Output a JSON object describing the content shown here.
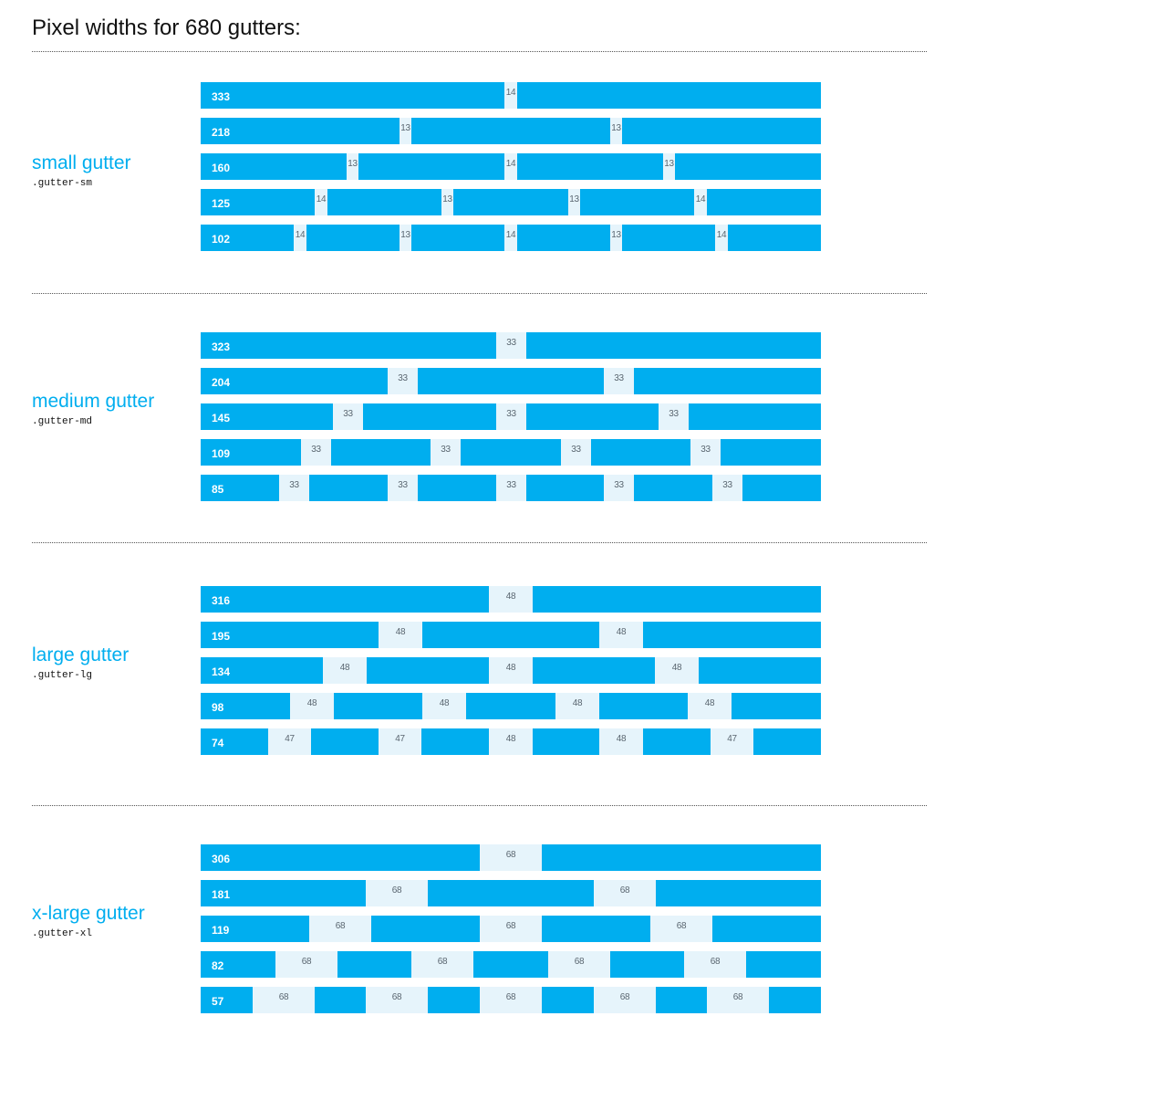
{
  "title": "Pixel widths for 680 gutters:",
  "colors": {
    "column": "#00aeef",
    "gutter": "#e6f4fb",
    "accent": "#00aeef"
  },
  "groups": [
    {
      "name": "small gutter",
      "class": ".gutter-sm",
      "rows": [
        {
          "label": "333",
          "gutters": [
            "14"
          ]
        },
        {
          "label": "218",
          "gutters": [
            "13",
            "13"
          ]
        },
        {
          "label": "160",
          "gutters": [
            "13",
            "14",
            "13"
          ]
        },
        {
          "label": "125",
          "gutters": [
            "14",
            "13",
            "13",
            "14"
          ]
        },
        {
          "label": "102",
          "gutters": [
            "14",
            "13",
            "14",
            "13",
            "14"
          ]
        }
      ]
    },
    {
      "name": "medium gutter",
      "class": ".gutter-md",
      "rows": [
        {
          "label": "323",
          "gutters": [
            "33"
          ]
        },
        {
          "label": "204",
          "gutters": [
            "33",
            "33"
          ]
        },
        {
          "label": "145",
          "gutters": [
            "33",
            "33",
            "33"
          ]
        },
        {
          "label": "109",
          "gutters": [
            "33",
            "33",
            "33",
            "33"
          ]
        },
        {
          "label": "85",
          "gutters": [
            "33",
            "33",
            "33",
            "33",
            "33"
          ]
        }
      ]
    },
    {
      "name": "large gutter",
      "class": ".gutter-lg",
      "rows": [
        {
          "label": "316",
          "gutters": [
            "48"
          ]
        },
        {
          "label": "195",
          "gutters": [
            "48",
            "48"
          ]
        },
        {
          "label": "134",
          "gutters": [
            "48",
            "48",
            "48"
          ]
        },
        {
          "label": "98",
          "gutters": [
            "48",
            "48",
            "48",
            "48"
          ]
        },
        {
          "label": "74",
          "gutters": [
            "47",
            "47",
            "48",
            "48",
            "47"
          ]
        }
      ]
    },
    {
      "name": "x-large gutter",
      "class": ".gutter-xl",
      "rows": [
        {
          "label": "306",
          "gutters": [
            "68"
          ]
        },
        {
          "label": "181",
          "gutters": [
            "68",
            "68"
          ]
        },
        {
          "label": "119",
          "gutters": [
            "68",
            "68",
            "68"
          ]
        },
        {
          "label": "82",
          "gutters": [
            "68",
            "68",
            "68",
            "68"
          ]
        },
        {
          "label": "57",
          "gutters": [
            "68",
            "68",
            "68",
            "68",
            "68"
          ]
        }
      ]
    }
  ]
}
